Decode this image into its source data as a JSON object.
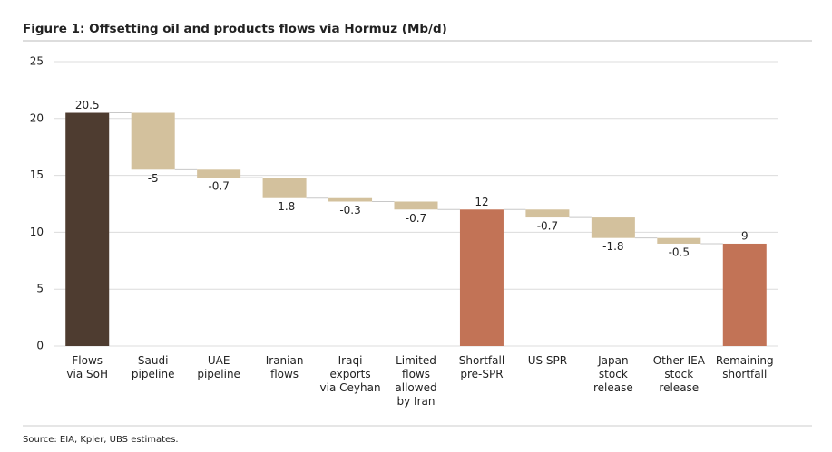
{
  "chart_data": {
    "type": "waterfall",
    "title": "Figure 1: Offsetting oil and products flows via Hormuz (Mb/d)",
    "source": "Source: EIA, Kpler, UBS estimates.",
    "categories": [
      [
        "Flows",
        "via SoH"
      ],
      [
        "Saudi",
        "pipeline"
      ],
      [
        "UAE",
        "pipeline"
      ],
      [
        "Iranian",
        "flows"
      ],
      [
        "Iraqi",
        "exports",
        "via Ceyhan"
      ],
      [
        "Limited",
        "flows",
        "allowed",
        "by Iran"
      ],
      [
        "Shortfall",
        "pre-SPR"
      ],
      [
        "US SPR"
      ],
      [
        "Japan",
        "stock",
        "release"
      ],
      [
        "Other IEA",
        "stock",
        "release"
      ],
      [
        "Remaining",
        "shortfall"
      ]
    ],
    "values": [
      20.5,
      -5,
      -0.7,
      -1.8,
      -0.3,
      -0.7,
      12,
      -0.7,
      -1.8,
      -0.5,
      9
    ],
    "kinds": [
      "total",
      "delta",
      "delta",
      "delta",
      "delta",
      "delta",
      "total",
      "delta",
      "delta",
      "delta",
      "total"
    ],
    "colors": [
      "#4e3c30",
      "#d3c19d",
      "#d3c19d",
      "#d3c19d",
      "#d3c19d",
      "#d3c19d",
      "#c27356",
      "#d3c19d",
      "#d3c19d",
      "#d3c19d",
      "#c27356"
    ],
    "ylim": [
      0,
      25
    ],
    "yticks": [
      0,
      5,
      10,
      15,
      20,
      25
    ],
    "grid": true
  }
}
